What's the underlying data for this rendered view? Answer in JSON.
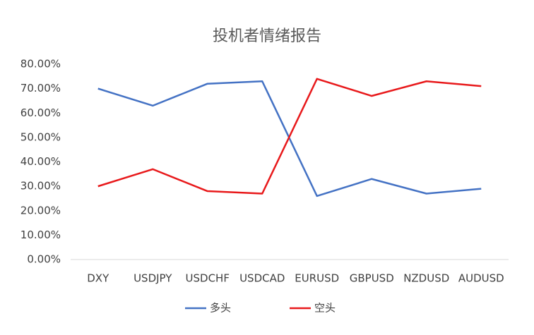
{
  "chart_data": {
    "type": "line",
    "title": "投机者情绪报告",
    "categories": [
      "DXY",
      "USDJPY",
      "USDCHF",
      "USDCAD",
      "EURUSD",
      "GBPUSD",
      "NZDUSD",
      "AUDUSD"
    ],
    "series": [
      {
        "name": "多头",
        "color": "#4472c4",
        "values": [
          70,
          63,
          72,
          73,
          26,
          33,
          27,
          29
        ]
      },
      {
        "name": "空头",
        "color": "#e8191b",
        "values": [
          30,
          37,
          28,
          27,
          74,
          67,
          73,
          71
        ]
      }
    ],
    "ylim": [
      0,
      80
    ],
    "yticks": [
      {
        "value": 0,
        "label": "0.00%"
      },
      {
        "value": 10,
        "label": "10.00%"
      },
      {
        "value": 20,
        "label": "20.00%"
      },
      {
        "value": 30,
        "label": "30.00%"
      },
      {
        "value": 40,
        "label": "40.00%"
      },
      {
        "value": 50,
        "label": "50.00%"
      },
      {
        "value": 60,
        "label": "60.00%"
      },
      {
        "value": 70,
        "label": "70.00%"
      },
      {
        "value": 80,
        "label": "80.00%"
      }
    ],
    "grid": false,
    "legend": "bottom"
  }
}
